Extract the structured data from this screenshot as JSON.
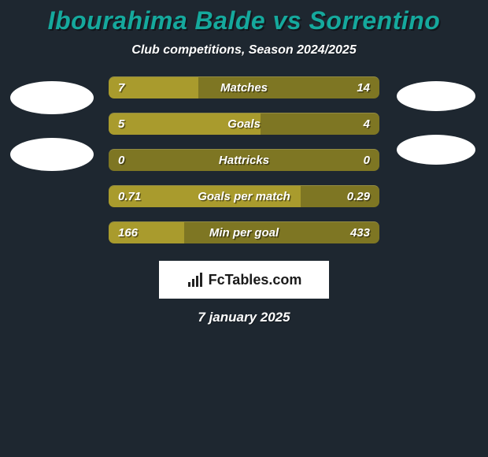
{
  "title": "Ibourahima Balde vs Sorrentino",
  "subtitle": "Club competitions, Season 2024/2025",
  "date": "7 january 2025",
  "logo_text": "FcTables.com",
  "colors": {
    "background": "#1e2730",
    "title": "#15a99d",
    "fill": "#a99b2d",
    "track": "#7e7623",
    "text": "#ffffff",
    "logo_bg": "#ffffff",
    "logo_text": "#1a1a1a"
  },
  "bar_style": {
    "height": 28,
    "radius": 7,
    "gap": 18,
    "font_size": 15
  },
  "rows": [
    {
      "label": "Matches",
      "left": "7",
      "right": "14",
      "left_pct": 33
    },
    {
      "label": "Goals",
      "left": "5",
      "right": "4",
      "left_pct": 56
    },
    {
      "label": "Hattricks",
      "left": "0",
      "right": "0",
      "left_pct": 0
    },
    {
      "label": "Goals per match",
      "left": "0.71",
      "right": "0.29",
      "left_pct": 71
    },
    {
      "label": "Min per goal",
      "left": "166",
      "right": "433",
      "left_pct": 28
    }
  ]
}
